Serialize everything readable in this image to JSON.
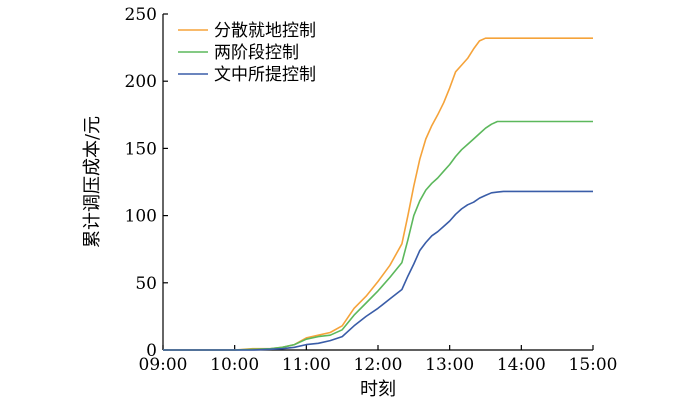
{
  "chart_data": {
    "type": "line",
    "title": "",
    "xlabel": "时刻",
    "ylabel": "累计调压成本/元",
    "x_ticks": [
      "09:00",
      "10:00",
      "11:00",
      "12:00",
      "13:00",
      "14:00",
      "15:00"
    ],
    "xlim": [
      "09:00",
      "15:00"
    ],
    "ylim": [
      0,
      250
    ],
    "y_ticks": [
      0,
      50,
      100,
      150,
      200,
      250
    ],
    "grid": false,
    "legend_position": "top-left",
    "x": [
      "09:00",
      "09:30",
      "10:00",
      "10:15",
      "10:30",
      "10:40",
      "10:50",
      "11:00",
      "11:10",
      "11:20",
      "11:30",
      "11:40",
      "11:50",
      "12:00",
      "12:10",
      "12:20",
      "12:25",
      "12:30",
      "12:35",
      "12:40",
      "12:45",
      "12:50",
      "12:55",
      "13:00",
      "13:05",
      "13:10",
      "13:15",
      "13:20",
      "13:25",
      "13:30",
      "13:35",
      "13:40",
      "13:45",
      "14:00",
      "14:30",
      "15:00"
    ],
    "series": [
      {
        "name": "分散就地控制",
        "color": "#f5a33a",
        "values": [
          0,
          0,
          0,
          1,
          1,
          2,
          4,
          9,
          11,
          13,
          18,
          31,
          40,
          51,
          63,
          79,
          100,
          122,
          142,
          157,
          167,
          175,
          184,
          195,
          207,
          212,
          217,
          224,
          230,
          232,
          232,
          232,
          232,
          232,
          232,
          232
        ]
      },
      {
        "name": "两阶段控制",
        "color": "#5cb85c",
        "values": [
          0,
          0,
          0,
          0.5,
          1,
          2,
          4,
          8,
          10,
          11,
          15,
          26,
          35,
          44,
          54,
          65,
          82,
          100,
          111,
          119,
          124,
          128,
          133,
          138,
          144,
          149,
          153,
          157,
          161,
          165,
          168,
          170,
          170,
          170,
          170,
          170
        ]
      },
      {
        "name": "文中所提控制",
        "color": "#3a5da8",
        "values": [
          0,
          0,
          0,
          0,
          0.5,
          1,
          2,
          4,
          5,
          7,
          10,
          18,
          25,
          31,
          38,
          45,
          55,
          64,
          74,
          80,
          85,
          88,
          92,
          96,
          101,
          105,
          108,
          110,
          113,
          115,
          117,
          117.5,
          118,
          118,
          118,
          118
        ]
      }
    ]
  }
}
